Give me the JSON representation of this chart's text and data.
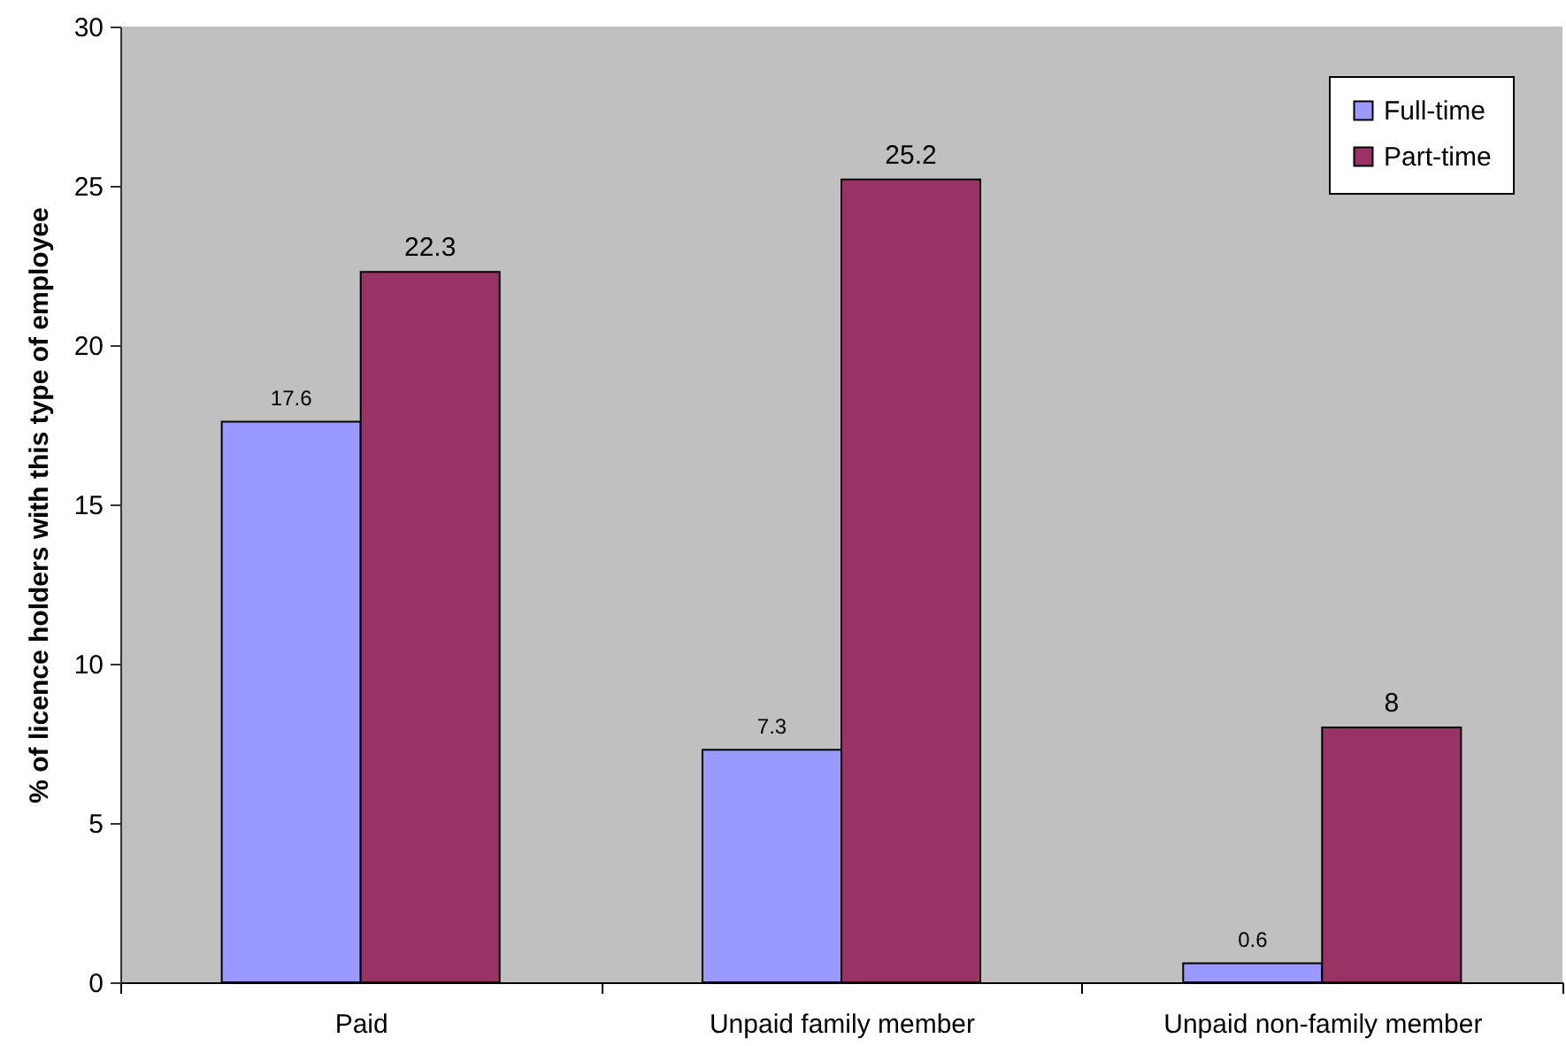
{
  "chart_data": {
    "type": "bar",
    "categories": [
      "Paid",
      "Unpaid family member",
      "Unpaid non-family member"
    ],
    "series": [
      {
        "name": "Full-time",
        "color": "#9999ff",
        "values": [
          17.6,
          7.3,
          0.6
        ]
      },
      {
        "name": "Part-time",
        "color": "#993366",
        "values": [
          22.3,
          25.2,
          8
        ]
      }
    ],
    "ylabel": "% of licence holders with this type of employee",
    "ylim": [
      0,
      30
    ],
    "yticks": [
      0,
      5,
      10,
      15,
      20,
      25,
      30
    ],
    "legend": "top right",
    "data_labels": true
  }
}
